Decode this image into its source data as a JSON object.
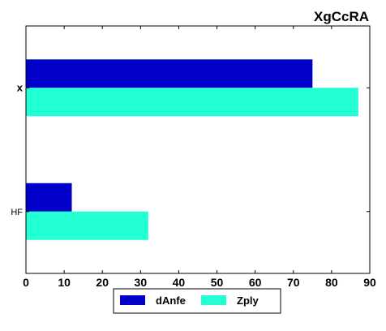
{
  "chart_data": {
    "type": "bar",
    "orientation": "horizontal",
    "title": "XgCcRA",
    "xlabel": "",
    "ylabel": "",
    "categories": [
      "x",
      "HF"
    ],
    "series": [
      {
        "name": "dAnfe",
        "values": [
          75,
          12
        ],
        "color": "#0000c8"
      },
      {
        "name": "Zply",
        "values": [
          87,
          32
        ],
        "color": "#22ffd2"
      }
    ],
    "xlim": [
      0,
      90
    ],
    "xticks": [
      0,
      10,
      20,
      30,
      40,
      50,
      60,
      70,
      80,
      90
    ],
    "grid": false,
    "legend_position": "bottom-center"
  }
}
